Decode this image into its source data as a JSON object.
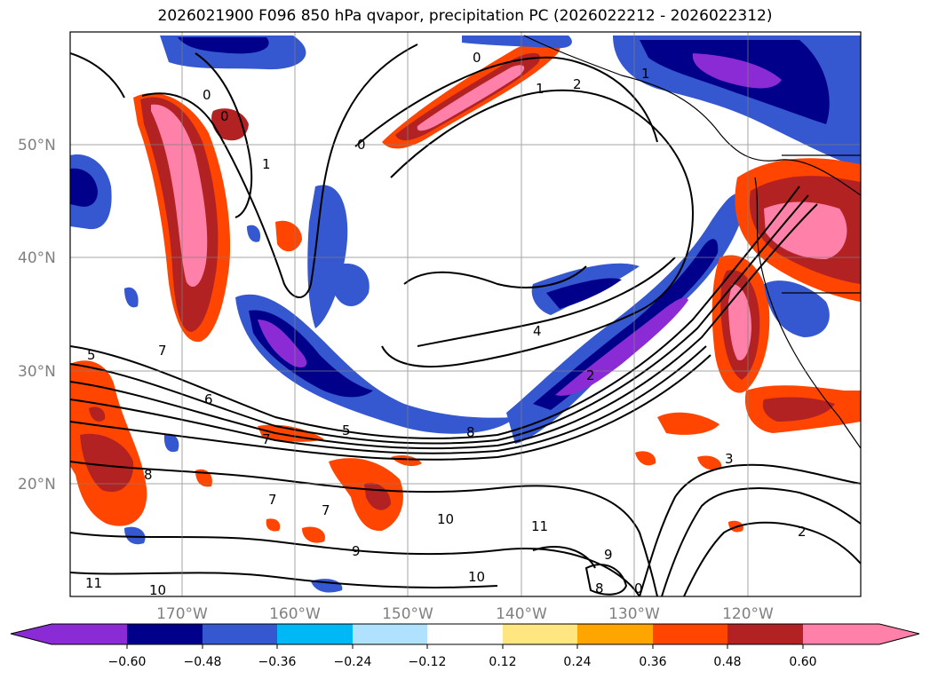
{
  "title": "2026021900 F096 850 hPa qvapor, precipitation PC (2026022212 - 2026022312)",
  "latitude_labels": [
    "50°N",
    "40°N",
    "30°N",
    "20°N"
  ],
  "longitude_labels": [
    "170°W",
    "160°W",
    "150°W",
    "140°W",
    "130°W",
    "120°W"
  ],
  "colorbar": {
    "extend": "both",
    "ticks": [
      "−0.60",
      "−0.48",
      "−0.36",
      "−0.24",
      "−0.12",
      "0.12",
      "0.24",
      "0.36",
      "0.48",
      "0.60"
    ],
    "colors": [
      "#8b2bd6",
      "#00008b",
      "#3557cf",
      "#00b8f5",
      "#b0e2ff",
      "#ffffff",
      "#ffe680",
      "#ffa500",
      "#ff4500",
      "#b22222",
      "#ff80a8"
    ]
  },
  "contour_labels": [
    "0",
    "0",
    "0",
    "0",
    "1",
    "1",
    "2",
    "1",
    "7",
    "6",
    "5",
    "5",
    "4",
    "2",
    "8",
    "7",
    "7",
    "7",
    "8",
    "9",
    "10",
    "11",
    "10",
    "11",
    "10",
    "9",
    "8",
    "0",
    "3",
    "2"
  ]
}
